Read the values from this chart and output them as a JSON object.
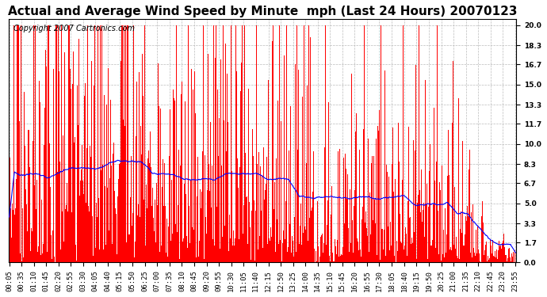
{
  "title": "Actual and Average Wind Speed by Minute  mph (Last 24 Hours) 20070123",
  "copyright": "Copyright 2007 Cartronics.com",
  "yticks": [
    0.0,
    1.7,
    3.3,
    5.0,
    6.7,
    8.3,
    10.0,
    11.7,
    13.3,
    15.0,
    16.7,
    18.3,
    20.0
  ],
  "ylim": [
    0.0,
    20.5
  ],
  "bar_color": "#FF0000",
  "line_color": "#0000FF",
  "background_color": "#FFFFFF",
  "grid_color": "#BBBBBB",
  "title_fontsize": 11,
  "copyright_fontsize": 7,
  "tick_fontsize": 6.5,
  "n_minutes": 1440,
  "seed": 12345,
  "xtick_labels": [
    "00:05",
    "00:35",
    "01:10",
    "01:45",
    "02:20",
    "02:55",
    "03:30",
    "04:05",
    "04:40",
    "05:15",
    "05:50",
    "06:25",
    "07:00",
    "07:35",
    "08:10",
    "08:45",
    "09:20",
    "09:55",
    "10:30",
    "11:05",
    "11:40",
    "12:15",
    "12:50",
    "13:25",
    "14:00",
    "14:35",
    "15:10",
    "15:45",
    "16:20",
    "16:55",
    "17:30",
    "18:05",
    "18:40",
    "19:15",
    "19:50",
    "20:25",
    "21:00",
    "21:35",
    "22:10",
    "22:45",
    "23:20",
    "23:55"
  ]
}
